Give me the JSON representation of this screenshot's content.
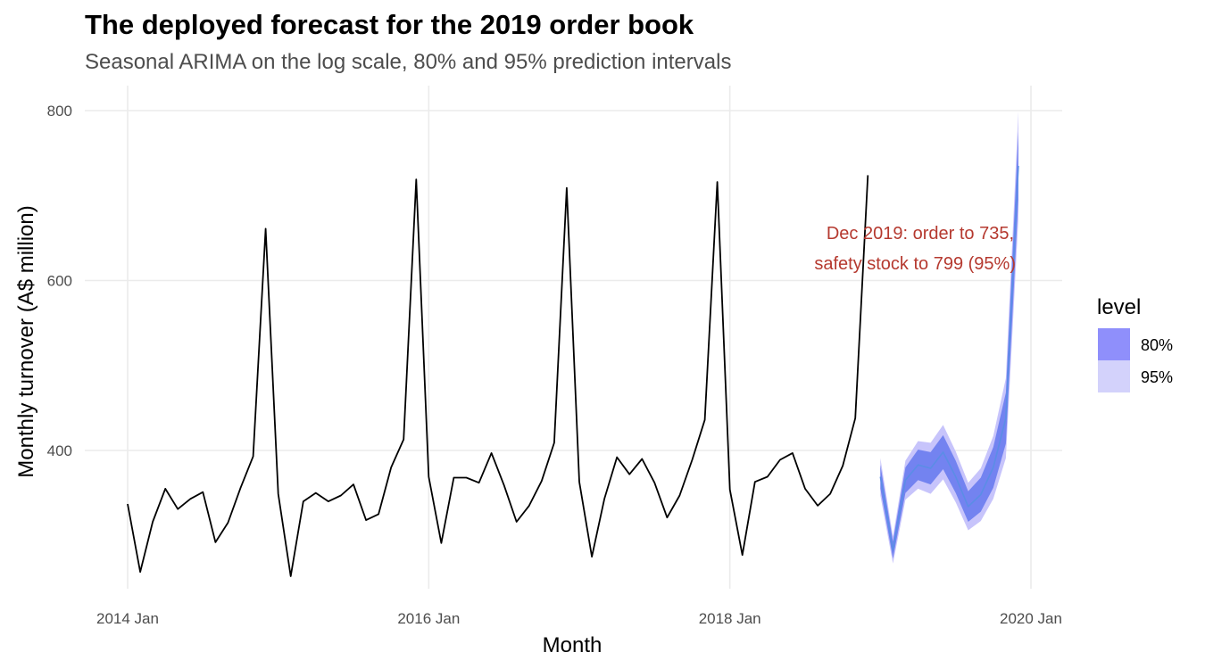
{
  "chart_data": {
    "type": "line",
    "title": "The deployed forecast for the 2019 order book",
    "subtitle": "Seasonal ARIMA on the log scale, 80% and 95% prediction intervals",
    "xlabel": "Month",
    "ylabel": "Monthly turnover (A$ million)",
    "x_ticks": [
      "2014 Jan",
      "2016 Jan",
      "2018 Jan",
      "2020 Jan"
    ],
    "y_ticks": [
      400,
      600,
      800
    ],
    "ylim": [
      240,
      825
    ],
    "grid": true,
    "history": {
      "start": "2014 Jan",
      "values": [
        337,
        257,
        316,
        355,
        331,
        343,
        351,
        292,
        315,
        356,
        393,
        661,
        349,
        252,
        340,
        350,
        340,
        347,
        360,
        318,
        325,
        380,
        413,
        719,
        369,
        291,
        368,
        368,
        362,
        397,
        359,
        316,
        335,
        364,
        409,
        709,
        363,
        275,
        343,
        392,
        372,
        390,
        362,
        321,
        347,
        389,
        436,
        716,
        354,
        277,
        363,
        369,
        389,
        397,
        355,
        335,
        349,
        382,
        438,
        724
      ]
    },
    "forecast": {
      "start": "2019 Jan",
      "mean": [
        369,
        283,
        365,
        383,
        379,
        398,
        369,
        334,
        348,
        380,
        438,
        735
      ],
      "lo80": [
        355,
        273,
        350,
        365,
        360,
        378,
        350,
        316,
        328,
        356,
        408,
        695
      ],
      "hi80": [
        383,
        293,
        380,
        401,
        398,
        418,
        388,
        352,
        368,
        404,
        468,
        775
      ],
      "lo95": [
        347,
        267,
        342,
        355,
        349,
        366,
        339,
        306,
        317,
        343,
        391,
        672
      ],
      "hi95": [
        391,
        299,
        388,
        411,
        409,
        430,
        399,
        362,
        379,
        417,
        485,
        799
      ]
    },
    "legend": {
      "title": "level",
      "position": "right",
      "items": [
        {
          "label": "80%",
          "color": "#8f8ffb"
        },
        {
          "label": "95%",
          "color": "#d3d2fb"
        }
      ]
    },
    "annotation": {
      "lines": [
        "Dec 2019: order to 735,",
        "safety stock to 799 (95%)"
      ]
    },
    "colors": {
      "history": "#000000",
      "forecast_line": "#5b8de6",
      "band80": "#7383f0",
      "band95": "#c7c4fb",
      "annotation": "#b5392f",
      "grid": "#ebebeb"
    }
  }
}
